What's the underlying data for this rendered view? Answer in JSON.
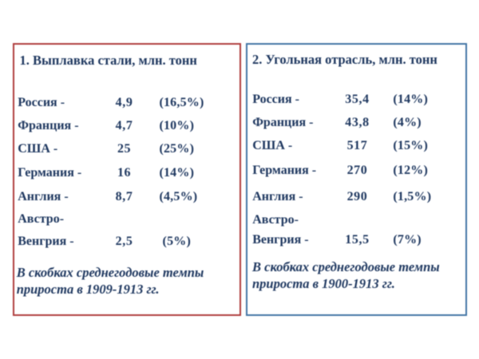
{
  "slide": {
    "background": "#ffffff",
    "text_color": "#1f3860"
  },
  "panels": [
    {
      "id": "steel",
      "border_color": "#b03e3e",
      "title": "1. Выплавка стали, млн. тонн",
      "rows": [
        {
          "label": "Россия -",
          "value": "4,9",
          "percent": "(16,5%)"
        },
        {
          "label": "Франция -",
          "value": "4,7",
          "percent": "(10%)"
        },
        {
          "label": "США -",
          "value": "25",
          "percent": "(25%)"
        },
        {
          "label": "Германия -",
          "value": "16",
          "percent": "(14%)"
        },
        {
          "label": "Англия -",
          "value": "8,7",
          "percent": "(4,5%)"
        },
        {
          "label_line1": "Австро-",
          "label_line2": "Венгрия -",
          "value": "2,5",
          "percent": "(5%)"
        }
      ],
      "note_line1": "В скобках среднегодовые темпы",
      "note_line2": "прироста в 1909-1913 гг."
    },
    {
      "id": "coal",
      "border_color": "#4376a6",
      "title": "2. Угольная отрасль, млн. тонн",
      "rows": [
        {
          "label": "Россия -",
          "value": "35,4",
          "percent": "(14%)"
        },
        {
          "label": "Франция -",
          "value": "43,8",
          "percent": "(4%)"
        },
        {
          "label": "США -",
          "value": "517",
          "percent": "(15%)"
        },
        {
          "label": "Германия -",
          "value": "270",
          "percent": "(12%)"
        },
        {
          "label": "Англия -",
          "value": "290",
          "percent": "(1,5%)"
        },
        {
          "label_line1": "Австро-",
          "label_line2": "Венгрия -",
          "value": "15,5",
          "percent": "(7%)"
        }
      ],
      "note_line1": "В скобках среднегодовые темпы",
      "note_line2": "прироста в 1900-1913 гг."
    }
  ]
}
